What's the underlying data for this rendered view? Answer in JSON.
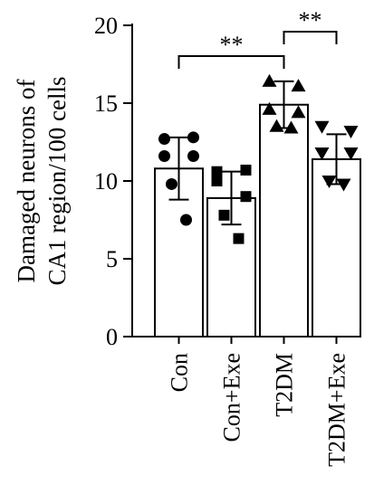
{
  "chart_data": {
    "type": "bar",
    "ylabel_lines": [
      "Damaged neurons of",
      "CA1 region/100 cells"
    ],
    "categories": [
      "Con",
      "Con+Exe",
      "T2DM",
      "T2DM+Exe"
    ],
    "values": [
      10.8,
      8.9,
      14.9,
      11.4
    ],
    "errors": [
      2.0,
      1.7,
      1.5,
      1.6
    ],
    "ylim": [
      0,
      20
    ],
    "yticks": [
      0,
      5,
      10,
      15,
      20
    ],
    "points": [
      [
        12.7,
        12.8,
        11.6,
        11.6,
        9.8,
        7.5
      ],
      [
        10.6,
        10.7,
        10.0,
        9.0,
        7.8,
        6.3
      ],
      [
        16.4,
        16.1,
        14.6,
        14.4,
        13.5,
        13.4
      ],
      [
        13.5,
        13.2,
        11.8,
        11.8,
        10.0,
        9.8
      ]
    ],
    "markers": [
      "circle",
      "square",
      "triangle-up",
      "triangle-down"
    ],
    "significance": [
      {
        "from": 0,
        "to": 2,
        "label": "**"
      },
      {
        "from": 2,
        "to": 3,
        "label": "**"
      }
    ],
    "grid": false
  }
}
